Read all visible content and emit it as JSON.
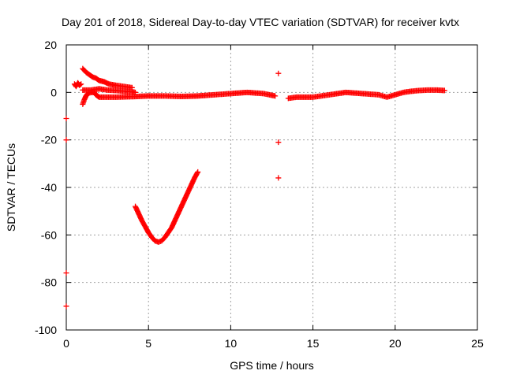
{
  "chart_data": {
    "type": "scatter",
    "title": "Day 201 of 2018, Sidereal Day-to-day VTEC variation (SDTVAR) for receiver kvtx",
    "xlabel": "GPS time / hours",
    "ylabel": "SDTVAR / TECUs",
    "xlim": [
      0,
      25
    ],
    "ylim": [
      -100,
      20
    ],
    "xticks": [
      0,
      5,
      10,
      15,
      20,
      25
    ],
    "yticks": [
      -100,
      -80,
      -60,
      -40,
      -20,
      0,
      20
    ],
    "grid": true,
    "legend": "none",
    "marker": "+",
    "color": "#ff0000",
    "series": [
      {
        "segments": [
          [
            [
              0.5,
              3.5
            ],
            [
              0.6,
              2.5
            ],
            [
              0.7,
              4
            ],
            [
              0.8,
              3
            ],
            [
              0.9,
              3.5
            ]
          ],
          [
            [
              1.0,
              10
            ],
            [
              1.2,
              8.5
            ],
            [
              1.4,
              7.5
            ],
            [
              1.6,
              6.5
            ],
            [
              1.8,
              6
            ],
            [
              2.0,
              5
            ],
            [
              2.3,
              4.5
            ],
            [
              2.6,
              3.5
            ],
            [
              3.0,
              3
            ],
            [
              3.5,
              2.5
            ],
            [
              4.0,
              2
            ]
          ],
          [
            [
              1.0,
              -5
            ],
            [
              1.1,
              -3
            ],
            [
              1.2,
              -1.5
            ],
            [
              1.3,
              -0.5
            ],
            [
              1.5,
              0
            ],
            [
              1.7,
              0
            ],
            [
              1.8,
              -1
            ],
            [
              2.0,
              -2
            ],
            [
              3.0,
              -2
            ],
            [
              4.0,
              -1.8
            ],
            [
              5.0,
              -1.5
            ],
            [
              6.0,
              -1.5
            ],
            [
              7.0,
              -1.7
            ],
            [
              8.0,
              -1.5
            ],
            [
              9.0,
              -1
            ],
            [
              10.0,
              -0.5
            ],
            [
              11.0,
              0
            ],
            [
              12.0,
              -0.5
            ],
            [
              12.7,
              -1.5
            ]
          ],
          [
            [
              1.0,
              1
            ],
            [
              1.5,
              1
            ],
            [
              2.0,
              1.5
            ],
            [
              2.5,
              1
            ],
            [
              3.0,
              0.8
            ],
            [
              3.5,
              0.5
            ],
            [
              4.0,
              0.3
            ],
            [
              4.2,
              0
            ]
          ],
          [
            [
              13.5,
              -2.5
            ],
            [
              14.0,
              -2
            ],
            [
              15.0,
              -2
            ],
            [
              16.0,
              -1
            ],
            [
              17.0,
              0
            ],
            [
              18.0,
              -0.5
            ],
            [
              19.0,
              -1
            ],
            [
              19.5,
              -2
            ],
            [
              20.0,
              -1
            ],
            [
              20.5,
              0
            ],
            [
              21.0,
              0.5
            ],
            [
              21.5,
              0.8
            ],
            [
              22.0,
              1
            ],
            [
              22.5,
              1
            ],
            [
              23.0,
              0.8
            ]
          ],
          [
            [
              4.2,
              -48
            ],
            [
              4.4,
              -51
            ],
            [
              4.6,
              -54
            ],
            [
              4.8,
              -56.5
            ],
            [
              5.0,
              -59
            ],
            [
              5.2,
              -61
            ],
            [
              5.4,
              -62.5
            ],
            [
              5.6,
              -63
            ],
            [
              5.8,
              -62.5
            ],
            [
              6.0,
              -61
            ],
            [
              6.2,
              -59
            ],
            [
              6.4,
              -57
            ],
            [
              6.6,
              -54
            ],
            [
              6.8,
              -51
            ],
            [
              7.0,
              -48
            ],
            [
              7.2,
              -45
            ],
            [
              7.4,
              -42
            ],
            [
              7.6,
              -39
            ],
            [
              7.8,
              -36
            ],
            [
              8.0,
              -33.5
            ]
          ]
        ],
        "singles": [
          [
            0,
            -11
          ],
          [
            0,
            -20
          ],
          [
            0,
            -76
          ],
          [
            0,
            -90
          ],
          [
            12.9,
            8
          ],
          [
            12.9,
            -21
          ],
          [
            12.9,
            -36
          ]
        ]
      }
    ]
  }
}
